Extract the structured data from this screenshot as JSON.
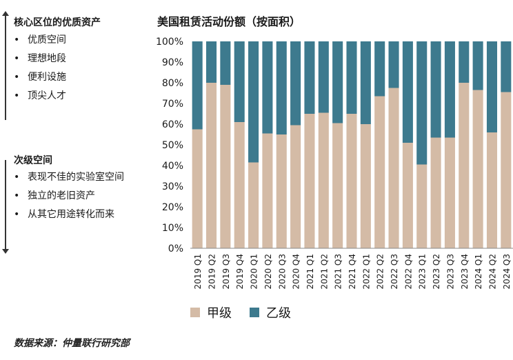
{
  "left_panel": {
    "prime": {
      "title": "核心区位的优质资产",
      "items": [
        "优质空间",
        "理想地段",
        "便利设施",
        "顶尖人才"
      ]
    },
    "secondary": {
      "title": "次级空间",
      "items": [
        "表现不佳的实验室空间",
        "独立的老旧资产",
        "从其它用途转化而来"
      ]
    }
  },
  "source": "数据来源：仲量联行研究部",
  "chart_data": {
    "type": "bar",
    "stacked": true,
    "title": "美国租赁活动份额（按面积）",
    "categories": [
      "2019 Q1",
      "2019 Q2",
      "2019 Q3",
      "2019 Q4",
      "2020 Q1",
      "2020 Q2",
      "2020 Q3",
      "2020 Q4",
      "2021 Q1",
      "2021 Q2",
      "2021 Q3",
      "2021 Q4",
      "2022 Q1",
      "2022 Q2",
      "2022 Q3",
      "2022 Q4",
      "2023 Q1",
      "2023 Q2",
      "2023 Q3",
      "2023 Q4",
      "2024 Q1",
      "2024 Q2",
      "2024 Q3"
    ],
    "series": [
      {
        "name": "甲级",
        "color": "#d4bba6",
        "values": [
          57.5,
          80,
          79,
          61,
          41.5,
          55.5,
          55,
          59.5,
          65,
          65.5,
          60.5,
          65,
          60,
          73.5,
          77.5,
          51,
          40.5,
          53.5,
          53.5,
          80,
          76.5,
          56,
          75.5
        ]
      },
      {
        "name": "乙级",
        "color": "#3d7a8e",
        "values": [
          42.5,
          20,
          21,
          39,
          58.5,
          44.5,
          45,
          40.5,
          35,
          34.5,
          39.5,
          35,
          40,
          26.5,
          22.5,
          49,
          59.5,
          46.5,
          46.5,
          20,
          23.5,
          44,
          24.5
        ]
      }
    ],
    "ylim": [
      0,
      100
    ],
    "yticks": [
      "0%",
      "10%",
      "20%",
      "30%",
      "40%",
      "50%",
      "60%",
      "70%",
      "80%",
      "90%",
      "100%"
    ],
    "legend_position": "bottom"
  }
}
